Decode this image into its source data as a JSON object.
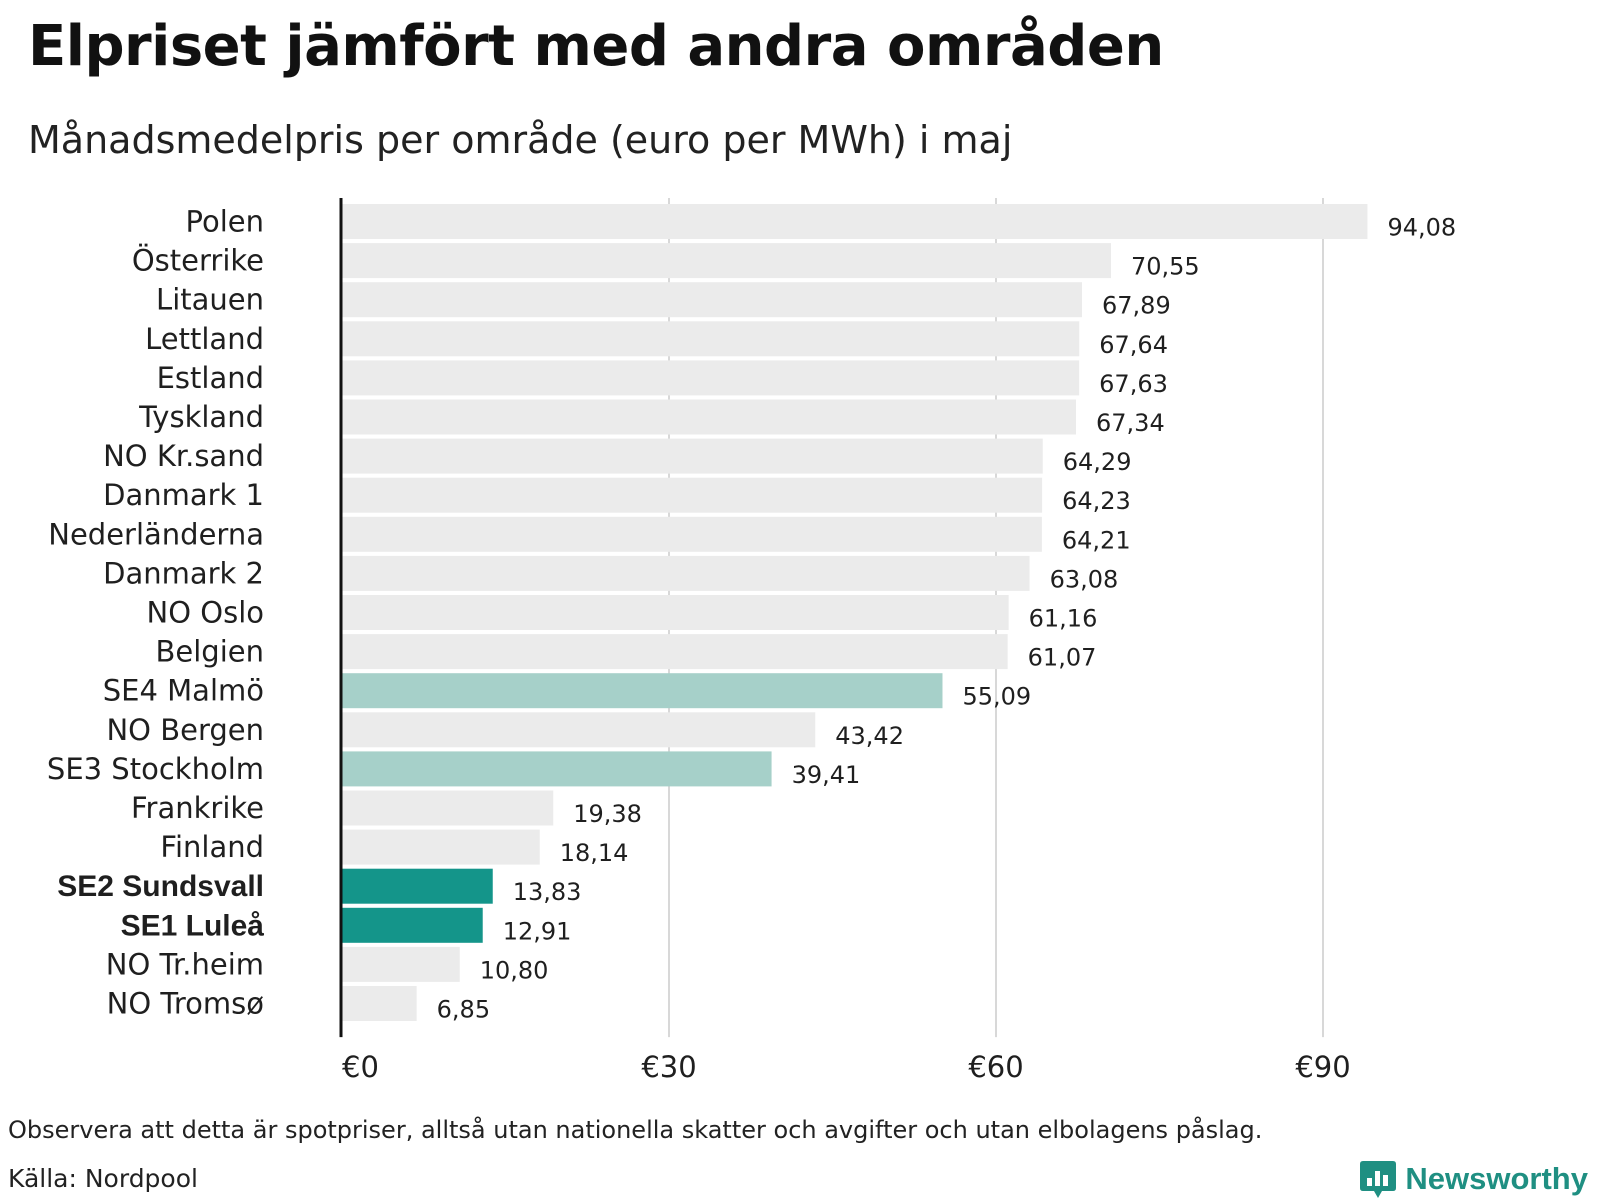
{
  "header": {
    "title": "Elpriset jämfört med andra områden",
    "subtitle": "Månadsmedelpris per område (euro per MWh) i maj"
  },
  "footer": {
    "note": "Observera att detta är spotpriser, alltså utan nationella skatter och avgifter och utan elbolagens påslag.",
    "source": "Källa: Nordpool",
    "brand": "Newsworthy"
  },
  "colors": {
    "default_bar": "#ebebeb",
    "highlight_light": "#a6d0c9",
    "highlight_dark": "#14958a",
    "axis": "#111111",
    "grid": "#cccccc",
    "brand": "#1f8f82"
  },
  "chart_data": {
    "type": "bar",
    "orientation": "horizontal",
    "xlim": [
      0,
      100
    ],
    "xticks": [
      0,
      30,
      60,
      90
    ],
    "xtick_labels": [
      "€0",
      "€30",
      "€60",
      "€90"
    ],
    "grid": true,
    "categories": [
      "Polen",
      "Österrike",
      "Litauen",
      "Lettland",
      "Estland",
      "Tyskland",
      "NO Kr.sand",
      "Danmark 1",
      "Nederländerna",
      "Danmark 2",
      "NO Oslo",
      "Belgien",
      "SE4 Malmö",
      "NO Bergen",
      "SE3 Stockholm",
      "Frankrike",
      "Finland",
      "SE2 Sundsvall",
      "SE1 Luleå",
      "NO Tr.heim",
      "NO Tromsø"
    ],
    "values": [
      94.08,
      70.55,
      67.89,
      67.64,
      67.63,
      67.34,
      64.29,
      64.23,
      64.21,
      63.08,
      61.16,
      61.07,
      55.09,
      43.42,
      39.41,
      19.38,
      18.14,
      13.83,
      12.91,
      10.8,
      6.85
    ],
    "value_labels": [
      "94,08",
      "70,55",
      "67,89",
      "67,64",
      "67,63",
      "67,34",
      "64,29",
      "64,23",
      "64,21",
      "63,08",
      "61,16",
      "61,07",
      "55,09",
      "43,42",
      "39,41",
      "19,38",
      "18,14",
      "13,83",
      "12,91",
      "10,80",
      "6,85"
    ],
    "highlight": [
      "none",
      "none",
      "none",
      "none",
      "none",
      "none",
      "none",
      "none",
      "none",
      "none",
      "none",
      "none",
      "light",
      "none",
      "light",
      "none",
      "none",
      "dark",
      "dark",
      "none",
      "none"
    ],
    "bold_labels": [
      "SE2 Sundsvall",
      "SE1 Luleå"
    ]
  }
}
